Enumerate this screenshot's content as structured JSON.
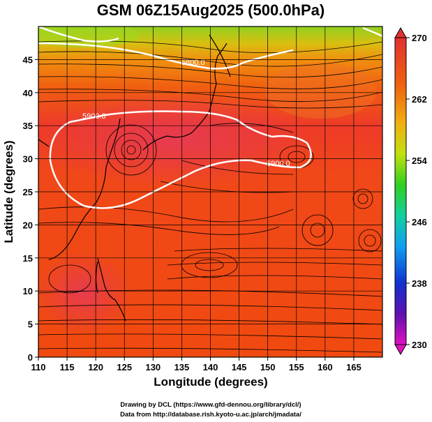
{
  "title": "GSM 06Z15Aug2025 (500.0hPa)",
  "xaxis": {
    "label": "Longitude (degrees)",
    "range": [
      110,
      170
    ],
    "ticks": [
      "110",
      "115",
      "120",
      "125",
      "130",
      "135",
      "140",
      "145",
      "150",
      "155",
      "160",
      "165"
    ]
  },
  "yaxis": {
    "label": "Latitude (degrees)",
    "range": [
      0,
      50
    ],
    "ticks": [
      "0",
      "5",
      "10",
      "15",
      "20",
      "25",
      "30",
      "35",
      "40",
      "45"
    ]
  },
  "colorbar": {
    "range": [
      230,
      270
    ],
    "ticks": [
      "230",
      "238",
      "246",
      "254",
      "262",
      "270"
    ],
    "colors": [
      "#e000c0",
      "#5010b0",
      "#1040f0",
      "#10a0f0",
      "#10e080",
      "#40d010",
      "#e0e010",
      "#f0a010",
      "#f05010",
      "#e03020"
    ]
  },
  "contours": [
    {
      "label": "5900.0"
    },
    {
      "label": "5900.0"
    },
    {
      "label": "5800.0"
    }
  ],
  "credits": {
    "line1": "Drawing by DCL (https://www.gfd-dennou.org/library/dcl/)",
    "line2": "Data from http://database.rish.kyoto-u.ac.jp/arch/jmadata/"
  }
}
